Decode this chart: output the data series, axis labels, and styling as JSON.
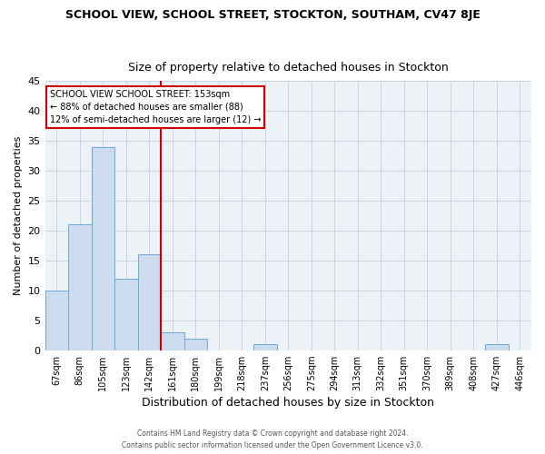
{
  "title": "SCHOOL VIEW, SCHOOL STREET, STOCKTON, SOUTHAM, CV47 8JE",
  "subtitle": "Size of property relative to detached houses in Stockton",
  "xlabel": "Distribution of detached houses by size in Stockton",
  "ylabel": "Number of detached properties",
  "categories": [
    "67sqm",
    "86sqm",
    "105sqm",
    "123sqm",
    "142sqm",
    "161sqm",
    "180sqm",
    "199sqm",
    "218sqm",
    "237sqm",
    "256sqm",
    "275sqm",
    "294sqm",
    "313sqm",
    "332sqm",
    "351sqm",
    "370sqm",
    "389sqm",
    "408sqm",
    "427sqm",
    "446sqm"
  ],
  "values": [
    10,
    21,
    34,
    12,
    16,
    3,
    2,
    0,
    0,
    1,
    0,
    0,
    0,
    0,
    0,
    0,
    0,
    0,
    0,
    1,
    0
  ],
  "bar_color": "#ccdcee",
  "bar_edge_color": "#6aaad4",
  "ylim": [
    0,
    45
  ],
  "yticks": [
    0,
    5,
    10,
    15,
    20,
    25,
    30,
    35,
    40,
    45
  ],
  "red_line_x": 4.5,
  "annotation_title": "SCHOOL VIEW SCHOOL STREET: 153sqm",
  "annotation_line1": "← 88% of detached houses are smaller (88)",
  "annotation_line2": "12% of semi-detached houses are larger (12) →",
  "annotation_box_color": "#ffffff",
  "annotation_border_color": "#cc0000",
  "footer_line1": "Contains HM Land Registry data © Crown copyright and database right 2024.",
  "footer_line2": "Contains public sector information licensed under the Open Government Licence v3.0.",
  "background_color": "#edf2f7",
  "grid_color": "#c5cfe0"
}
